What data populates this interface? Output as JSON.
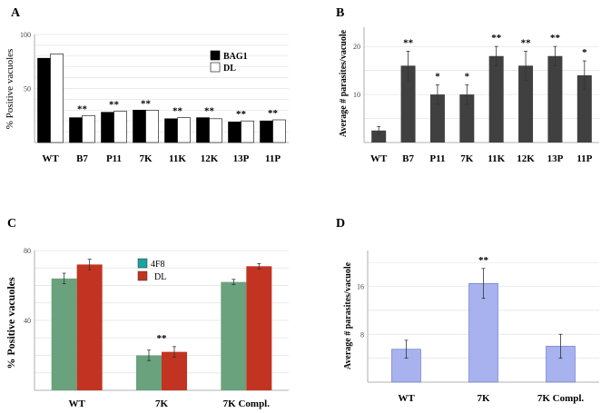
{
  "panels": {
    "A": "A",
    "B": "B",
    "C": "C",
    "D": "D"
  },
  "chart_data": [
    {
      "id": "A",
      "type": "bar",
      "title": "",
      "ylabel": "% Positive vacuoles",
      "categories": [
        "WT",
        "B7",
        "P11",
        "7K",
        "11K",
        "12K",
        "13P",
        "11P"
      ],
      "series": [
        {
          "name": "BAG1",
          "color": "#000000",
          "values": [
            78,
            23,
            28,
            30,
            22,
            23,
            19,
            20
          ]
        },
        {
          "name": "DL",
          "color": "#ffffff",
          "values": [
            82,
            25,
            29,
            30,
            23,
            22,
            20,
            21
          ]
        }
      ],
      "significance": [
        "",
        "**",
        "**",
        "**",
        "**",
        "**",
        "**",
        "**"
      ],
      "ylim": [
        0,
        100
      ],
      "yticks": [
        100,
        50
      ]
    },
    {
      "id": "B",
      "type": "bar",
      "ylabel": "Average # parasites/vacuole",
      "categories": [
        "WT",
        "B7",
        "P11",
        "7K",
        "11K",
        "12K",
        "13P",
        "11P"
      ],
      "series": [
        {
          "name": "",
          "color": "#404040",
          "values": [
            2.5,
            16,
            10,
            10,
            18,
            16,
            18,
            14
          ]
        }
      ],
      "errors": [
        0.8,
        3,
        2,
        2,
        2,
        3,
        2,
        3
      ],
      "significance": [
        "",
        "**",
        "*",
        "*",
        "**",
        "**",
        "**",
        "*"
      ],
      "ylim": [
        0,
        24
      ],
      "yticks": [
        20,
        10
      ]
    },
    {
      "id": "C",
      "type": "bar",
      "ylabel": "% Positive vacuoles",
      "categories": [
        "WT",
        "7K",
        "7K Compl."
      ],
      "series": [
        {
          "name": "4F8",
          "color": "#69a27d",
          "values": [
            64,
            20,
            62
          ]
        },
        {
          "name": "DL",
          "color": "#c23421",
          "values": [
            72,
            22,
            71
          ]
        }
      ],
      "errors": [
        [
          3,
          3,
          1.5
        ],
        [
          3,
          3,
          1.5
        ]
      ],
      "significance": [
        "",
        "**",
        ""
      ],
      "ylim": [
        0,
        80
      ],
      "yticks": [
        80,
        40
      ]
    },
    {
      "id": "D",
      "type": "bar",
      "ylabel": "Average # parasites/vacuole",
      "categories": [
        "WT",
        "7K",
        "7K Compl."
      ],
      "series": [
        {
          "name": "",
          "color": "#a7b2ee",
          "values": [
            5.5,
            16.5,
            6
          ]
        }
      ],
      "errors": [
        1.5,
        2.5,
        2
      ],
      "significance": [
        "",
        "**",
        ""
      ],
      "ylim": [
        0,
        22
      ],
      "yticks": [
        16,
        8
      ]
    }
  ]
}
